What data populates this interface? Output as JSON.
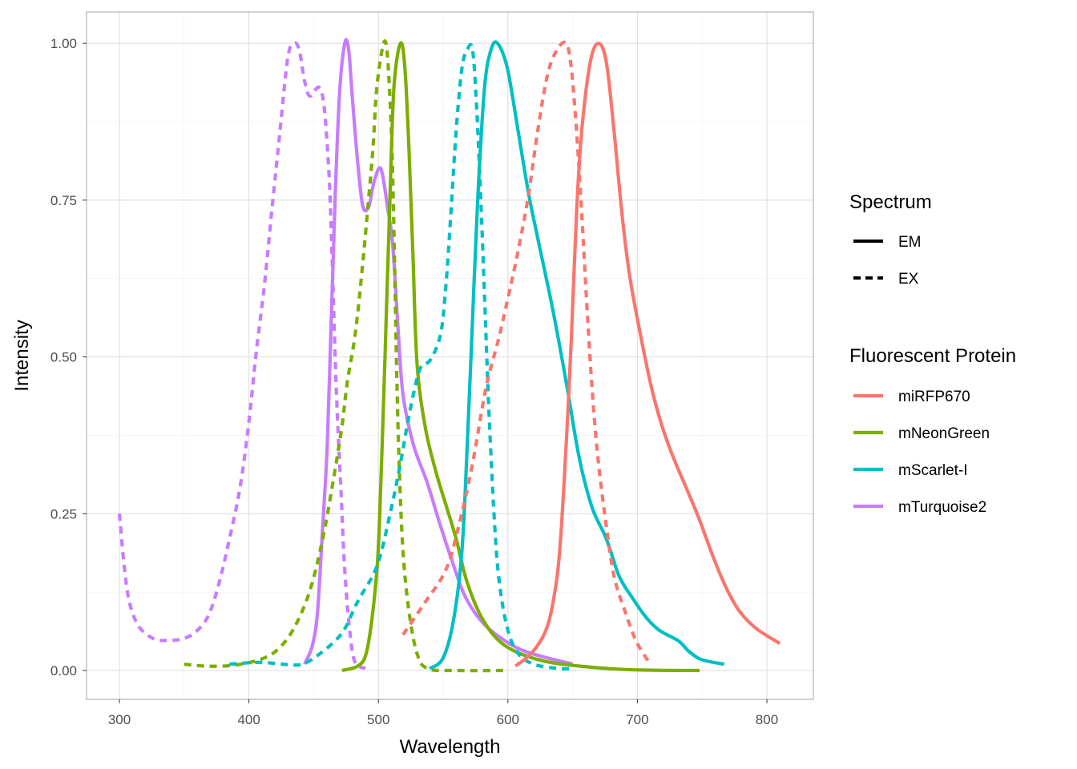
{
  "chart_data": {
    "type": "line",
    "title": "",
    "xlabel": "Wavelength",
    "ylabel": "Intensity",
    "xlim": [
      274.6,
      835.9
    ],
    "ylim": [
      -0.046,
      1.05
    ],
    "x_ticks": [
      300,
      400,
      500,
      600,
      700,
      800
    ],
    "y_ticks": [
      "0.00",
      "0.25",
      "0.50",
      "0.75",
      "1.00"
    ],
    "grid": true,
    "legend_position": "right",
    "legends": [
      {
        "title": "Spectrum",
        "items": [
          {
            "label": "EM",
            "linetype": "solid"
          },
          {
            "label": "EX",
            "linetype": "dashed"
          }
        ]
      },
      {
        "title": "Fluorescent Protein",
        "items": [
          {
            "label": "miRFP670",
            "color": "#F8766D"
          },
          {
            "label": "mNeonGreen",
            "color": "#7CAE00"
          },
          {
            "label": "mScarlet-I",
            "color": "#00BFC4"
          },
          {
            "label": "mTurquoise2",
            "color": "#C77CFF"
          }
        ]
      }
    ],
    "series": [
      {
        "protein": "mTurquoise2",
        "spectrum": "EX",
        "color": "#C77CFF",
        "points": [
          [
            300,
            0.25
          ],
          [
            303.5,
            0.17
          ],
          [
            307.6,
            0.11
          ],
          [
            315,
            0.07
          ],
          [
            327,
            0.05
          ],
          [
            337.6,
            0.048
          ],
          [
            348,
            0.05
          ],
          [
            358,
            0.06
          ],
          [
            368.6,
            0.087
          ],
          [
            377,
            0.14
          ],
          [
            385,
            0.21
          ],
          [
            393,
            0.29
          ],
          [
            399.6,
            0.39
          ],
          [
            405.8,
            0.51
          ],
          [
            412,
            0.615
          ],
          [
            418,
            0.74
          ],
          [
            424,
            0.86
          ],
          [
            430,
            0.977
          ],
          [
            434.7,
            1.0
          ],
          [
            438.8,
            0.99
          ],
          [
            443,
            0.94
          ],
          [
            447,
            0.916
          ],
          [
            454,
            0.93
          ],
          [
            458,
            0.9
          ],
          [
            461.6,
            0.8
          ],
          [
            463.6,
            0.7
          ],
          [
            465.7,
            0.56
          ],
          [
            467.8,
            0.43
          ],
          [
            471,
            0.29
          ],
          [
            474,
            0.16
          ],
          [
            478,
            0.06
          ],
          [
            482,
            0.013
          ],
          [
            490,
            0.003
          ]
        ]
      },
      {
        "protein": "mTurquoise2",
        "spectrum": "EM",
        "color": "#C77CFF",
        "points": [
          [
            443,
            0.01
          ],
          [
            449,
            0.04
          ],
          [
            453,
            0.094
          ],
          [
            457,
            0.23
          ],
          [
            460.5,
            0.36
          ],
          [
            463.6,
            0.56
          ],
          [
            466.7,
            0.76
          ],
          [
            470,
            0.92
          ],
          [
            474,
            1.0
          ],
          [
            477,
            0.99
          ],
          [
            480,
            0.91
          ],
          [
            484,
            0.81
          ],
          [
            488,
            0.74
          ],
          [
            492.6,
            0.74
          ],
          [
            496.7,
            0.78
          ],
          [
            501.9,
            0.8
          ],
          [
            507,
            0.74
          ],
          [
            511,
            0.68
          ],
          [
            515,
            0.55
          ],
          [
            519,
            0.44
          ],
          [
            527,
            0.36
          ],
          [
            537.6,
            0.3
          ],
          [
            548,
            0.23
          ],
          [
            556,
            0.18
          ],
          [
            566.5,
            0.12
          ],
          [
            579,
            0.08
          ],
          [
            593,
            0.054
          ],
          [
            614,
            0.03
          ],
          [
            650,
            0.01
          ]
        ]
      },
      {
        "protein": "mNeonGreen",
        "spectrum": "EX",
        "color": "#7CAE00",
        "points": [
          [
            350,
            0.01
          ],
          [
            366.5,
            0.007
          ],
          [
            387,
            0.008
          ],
          [
            408,
            0.017
          ],
          [
            422,
            0.033
          ],
          [
            434.7,
            0.067
          ],
          [
            447,
            0.127
          ],
          [
            457,
            0.21
          ],
          [
            465.7,
            0.31
          ],
          [
            471.9,
            0.39
          ],
          [
            476,
            0.46
          ],
          [
            482,
            0.535
          ],
          [
            487,
            0.63
          ],
          [
            491.5,
            0.73
          ],
          [
            495.7,
            0.83
          ],
          [
            498.8,
            0.93
          ],
          [
            504,
            1.0
          ],
          [
            507,
            0.98
          ],
          [
            510,
            0.86
          ],
          [
            512,
            0.7
          ],
          [
            514,
            0.49
          ],
          [
            516,
            0.33
          ],
          [
            519,
            0.19
          ],
          [
            523.6,
            0.094
          ],
          [
            529.8,
            0.027
          ],
          [
            538,
            0.003
          ],
          [
            560,
            0.0
          ],
          [
            600,
            0.0
          ]
        ]
      },
      {
        "protein": "mNeonGreen",
        "spectrum": "EM",
        "color": "#7CAE00",
        "points": [
          [
            471.9,
            0.0
          ],
          [
            484,
            0.007
          ],
          [
            490.5,
            0.027
          ],
          [
            495.7,
            0.094
          ],
          [
            499.8,
            0.19
          ],
          [
            502.9,
            0.36
          ],
          [
            506,
            0.56
          ],
          [
            509,
            0.76
          ],
          [
            512,
            0.93
          ],
          [
            517,
            1.0
          ],
          [
            520.5,
            0.96
          ],
          [
            523.6,
            0.83
          ],
          [
            526.7,
            0.66
          ],
          [
            529.8,
            0.49
          ],
          [
            536,
            0.39
          ],
          [
            544,
            0.32
          ],
          [
            552,
            0.265
          ],
          [
            560,
            0.21
          ],
          [
            568.6,
            0.14
          ],
          [
            581,
            0.08
          ],
          [
            597.5,
            0.04
          ],
          [
            624,
            0.017
          ],
          [
            655,
            0.007
          ],
          [
            696.7,
            0.001
          ],
          [
            748,
            0.0
          ]
        ]
      },
      {
        "protein": "mScarlet-I",
        "spectrum": "EX",
        "color": "#00BFC4",
        "points": [
          [
            385,
            0.01
          ],
          [
            408,
            0.013
          ],
          [
            426,
            0.01
          ],
          [
            441,
            0.01
          ],
          [
            455,
            0.027
          ],
          [
            472,
            0.06
          ],
          [
            484,
            0.11
          ],
          [
            499,
            0.167
          ],
          [
            509,
            0.25
          ],
          [
            517,
            0.33
          ],
          [
            524,
            0.41
          ],
          [
            532,
            0.48
          ],
          [
            540,
            0.495
          ],
          [
            547.9,
            0.535
          ],
          [
            552,
            0.61
          ],
          [
            556,
            0.73
          ],
          [
            560,
            0.86
          ],
          [
            564.5,
            0.96
          ],
          [
            568.6,
            0.99
          ],
          [
            572.7,
            0.99
          ],
          [
            575.8,
            0.9
          ],
          [
            578.9,
            0.76
          ],
          [
            582,
            0.595
          ],
          [
            585,
            0.43
          ],
          [
            589,
            0.26
          ],
          [
            593,
            0.147
          ],
          [
            599.6,
            0.067
          ],
          [
            608,
            0.027
          ],
          [
            620,
            0.01
          ],
          [
            639,
            0.003
          ],
          [
            649,
            0.003
          ]
        ]
      },
      {
        "protein": "mScarlet-I",
        "spectrum": "EM",
        "color": "#00BFC4",
        "points": [
          [
            539.7,
            0.003
          ],
          [
            550,
            0.02
          ],
          [
            558,
            0.08
          ],
          [
            564.5,
            0.19
          ],
          [
            568.6,
            0.36
          ],
          [
            572.7,
            0.56
          ],
          [
            576.9,
            0.76
          ],
          [
            582,
            0.93
          ],
          [
            587,
            0.99
          ],
          [
            592,
            1.0
          ],
          [
            599.6,
            0.96
          ],
          [
            607.9,
            0.86
          ],
          [
            616,
            0.76
          ],
          [
            624,
            0.68
          ],
          [
            634.7,
            0.575
          ],
          [
            645,
            0.46
          ],
          [
            655,
            0.34
          ],
          [
            665,
            0.26
          ],
          [
            676,
            0.21
          ],
          [
            686,
            0.15
          ],
          [
            696.7,
            0.114
          ],
          [
            707,
            0.084
          ],
          [
            717,
            0.064
          ],
          [
            731.8,
            0.047
          ],
          [
            740,
            0.03
          ],
          [
            750,
            0.017
          ],
          [
            767,
            0.01
          ]
        ]
      },
      {
        "protein": "miRFP670",
        "spectrum": "EX",
        "color": "#F8766D",
        "points": [
          [
            519,
            0.057
          ],
          [
            535.5,
            0.107
          ],
          [
            552,
            0.16
          ],
          [
            562,
            0.23
          ],
          [
            572.7,
            0.33
          ],
          [
            583,
            0.45
          ],
          [
            593,
            0.53
          ],
          [
            599.6,
            0.59
          ],
          [
            608,
            0.67
          ],
          [
            616,
            0.76
          ],
          [
            623,
            0.86
          ],
          [
            630.6,
            0.95
          ],
          [
            638,
            0.99
          ],
          [
            645,
            1.0
          ],
          [
            649,
            0.96
          ],
          [
            653,
            0.86
          ],
          [
            657,
            0.73
          ],
          [
            661.6,
            0.56
          ],
          [
            665.7,
            0.43
          ],
          [
            670,
            0.33
          ],
          [
            676,
            0.23
          ],
          [
            682,
            0.15
          ],
          [
            690.5,
            0.094
          ],
          [
            699,
            0.047
          ],
          [
            709,
            0.013
          ]
        ]
      },
      {
        "protein": "miRFP670",
        "spectrum": "EM",
        "color": "#F8766D",
        "points": [
          [
            605.8,
            0.007
          ],
          [
            618,
            0.027
          ],
          [
            628.5,
            0.06
          ],
          [
            634.7,
            0.107
          ],
          [
            640,
            0.19
          ],
          [
            645,
            0.36
          ],
          [
            649,
            0.53
          ],
          [
            653,
            0.73
          ],
          [
            657,
            0.86
          ],
          [
            663.6,
            0.97
          ],
          [
            670,
            1.0
          ],
          [
            676,
            0.97
          ],
          [
            682,
            0.86
          ],
          [
            688,
            0.73
          ],
          [
            694,
            0.63
          ],
          [
            702.9,
            0.53
          ],
          [
            711,
            0.45
          ],
          [
            719,
            0.39
          ],
          [
            727.7,
            0.34
          ],
          [
            738,
            0.29
          ],
          [
            748,
            0.24
          ],
          [
            758.7,
            0.18
          ],
          [
            769,
            0.13
          ],
          [
            779,
            0.094
          ],
          [
            791.7,
            0.067
          ],
          [
            810,
            0.043
          ]
        ]
      }
    ]
  }
}
